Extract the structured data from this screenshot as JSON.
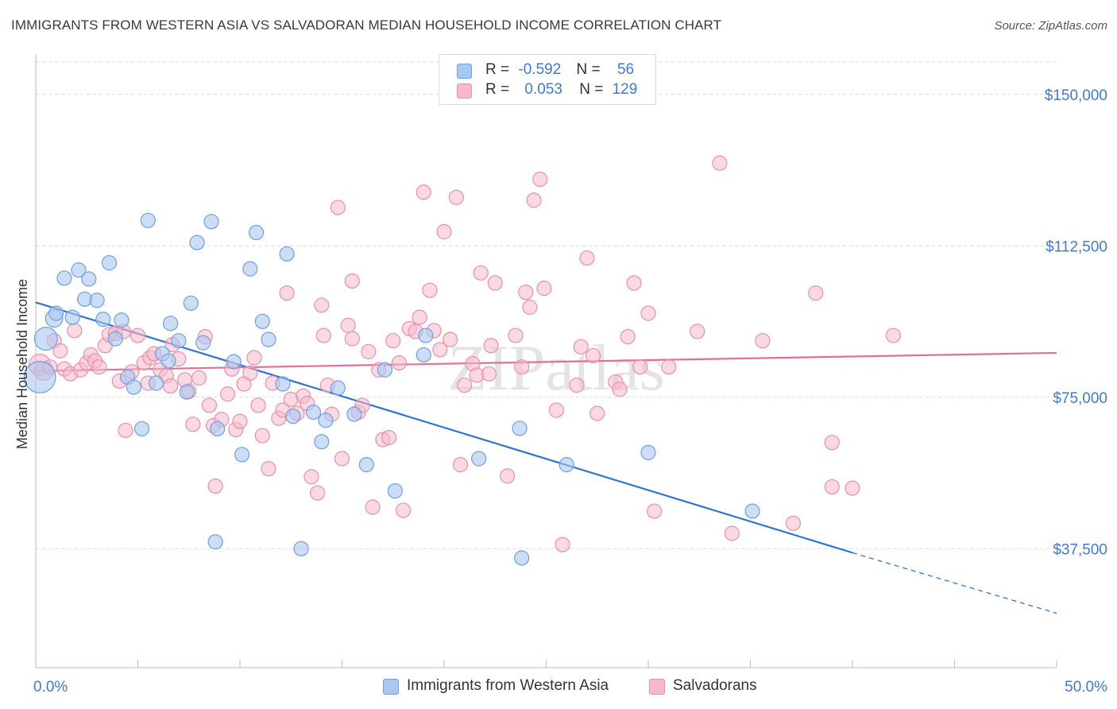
{
  "title": "IMMIGRANTS FROM WESTERN ASIA VS SALVADORAN MEDIAN HOUSEHOLD INCOME CORRELATION CHART",
  "source": "Source: ZipAtlas.com",
  "watermark": "ZIPatlas",
  "colors": {
    "blue_fill": "#a9c8f0",
    "blue_stroke": "#6f9fe0",
    "blue_line": "#2f74d0",
    "pink_fill": "#f6b9cb",
    "pink_stroke": "#ea8fab",
    "pink_line": "#e0709a",
    "axis_text": "#3f7ad0",
    "grid": "#d9d9d9"
  },
  "legend": {
    "rows": [
      {
        "r_label": "R =",
        "r_value": "-0.592",
        "n_label": "N =",
        "n_value": "56"
      },
      {
        "r_label": "R =",
        "r_value": "0.053",
        "n_label": "N =",
        "n_value": "129"
      }
    ]
  },
  "bottom_legend": [
    "Immigrants from Western Asia",
    "Salvadorans"
  ],
  "chart_data": {
    "type": "scatter",
    "title": "IMMIGRANTS FROM WESTERN ASIA VS SALVADORAN MEDIAN HOUSEHOLD INCOME CORRELATION CHART",
    "xlabel": "",
    "ylabel": "Median Household Income",
    "xlim": [
      0,
      50
    ],
    "ylim": [
      10000,
      160000
    ],
    "x_tick_labels": [
      "0.0%",
      "50.0%"
    ],
    "y_ticks": [
      37500,
      75000,
      112500,
      150000
    ],
    "y_tick_labels": [
      "$37,500",
      "$75,000",
      "$112,500",
      "$150,000"
    ],
    "grid": true,
    "legend_position": "top-center",
    "series": [
      {
        "name": "Immigrants from Western Asia",
        "r": -0.592,
        "n": 56,
        "trend": {
          "x0": 0,
          "y0": 98500,
          "x1": 40,
          "y1": 36500,
          "dashed_to_x": 50,
          "dashed_to_y": 21500
        },
        "points": [
          [
            0.2,
            80000,
            2.2
          ],
          [
            0.5,
            89500,
            1.6
          ],
          [
            0.9,
            94500,
            1.2
          ],
          [
            1.0,
            95800,
            1.0
          ],
          [
            1.4,
            104500,
            1.0
          ],
          [
            1.8,
            94800,
            1.0
          ],
          [
            2.1,
            106500,
            1.0
          ],
          [
            2.4,
            99300,
            1.0
          ],
          [
            2.6,
            104300,
            1.0
          ],
          [
            3.0,
            99000,
            1.0
          ],
          [
            3.3,
            94300,
            1.0
          ],
          [
            3.6,
            108300,
            1.0
          ],
          [
            3.9,
            89500,
            1.0
          ],
          [
            4.2,
            94100,
            1.0
          ],
          [
            4.5,
            80000,
            1.0
          ],
          [
            4.8,
            77500,
            1.0
          ],
          [
            5.2,
            67200,
            1.0
          ],
          [
            5.5,
            118800,
            1.0
          ],
          [
            5.9,
            78500,
            1.0
          ],
          [
            6.2,
            85800,
            1.0
          ],
          [
            6.5,
            84000,
            1.0
          ],
          [
            6.6,
            93300,
            1.0
          ],
          [
            7.0,
            89000,
            1.0
          ],
          [
            7.4,
            76300,
            1.0
          ],
          [
            7.6,
            98300,
            1.0
          ],
          [
            7.9,
            113300,
            1.0
          ],
          [
            8.2,
            88500,
            1.0
          ],
          [
            8.6,
            118500,
            1.0
          ],
          [
            8.9,
            67200,
            1.0
          ],
          [
            8.8,
            39200,
            1.0
          ],
          [
            9.7,
            83800,
            1.0
          ],
          [
            10.1,
            60800,
            1.0
          ],
          [
            10.5,
            106800,
            1.0
          ],
          [
            10.8,
            115800,
            1.0
          ],
          [
            11.1,
            93800,
            1.0
          ],
          [
            11.4,
            89300,
            1.0
          ],
          [
            12.1,
            78300,
            1.0
          ],
          [
            12.3,
            110500,
            1.0
          ],
          [
            12.6,
            70300,
            1.0
          ],
          [
            13.0,
            37500,
            1.0
          ],
          [
            13.6,
            71300,
            1.0
          ],
          [
            14.0,
            64000,
            1.0
          ],
          [
            14.2,
            69300,
            1.0
          ],
          [
            14.8,
            77300,
            1.0
          ],
          [
            15.6,
            70800,
            1.0
          ],
          [
            16.2,
            58300,
            1.0
          ],
          [
            17.1,
            81800,
            1.0
          ],
          [
            17.6,
            51800,
            1.0
          ],
          [
            19.1,
            90300,
            1.0
          ],
          [
            19.0,
            85500,
            1.0
          ],
          [
            21.7,
            59800,
            1.0
          ],
          [
            23.7,
            67300,
            1.0
          ],
          [
            23.8,
            35200,
            1.0
          ],
          [
            26.0,
            58300,
            1.0
          ],
          [
            30.0,
            61300,
            1.0
          ],
          [
            35.1,
            46800,
            1.0
          ]
        ]
      },
      {
        "name": "Salvadorans",
        "r": 0.053,
        "n": 129,
        "trend": {
          "x0": 0,
          "y0": 81500,
          "x1": 50,
          "y1": 86000
        },
        "points": [
          [
            0.2,
            83000,
            1.5
          ],
          [
            0.4,
            81500,
            1.3
          ],
          [
            0.7,
            82500,
            1.0
          ],
          [
            0.9,
            89000,
            1.0
          ],
          [
            1.2,
            86500,
            1.0
          ],
          [
            1.4,
            82000,
            1.0
          ],
          [
            1.7,
            80800,
            1.0
          ],
          [
            1.9,
            91500,
            1.0
          ],
          [
            2.2,
            81800,
            1.0
          ],
          [
            2.5,
            83500,
            1.0
          ],
          [
            2.7,
            85500,
            1.0
          ],
          [
            2.9,
            84000,
            1.0
          ],
          [
            3.1,
            82500,
            1.0
          ],
          [
            3.4,
            87800,
            1.0
          ],
          [
            3.6,
            90500,
            1.0
          ],
          [
            3.9,
            90800,
            1.0
          ],
          [
            4.1,
            79000,
            1.0
          ],
          [
            4.3,
            91300,
            1.0
          ],
          [
            4.4,
            66800,
            1.0
          ],
          [
            4.7,
            81300,
            1.0
          ],
          [
            5.0,
            90300,
            1.0
          ],
          [
            5.3,
            83500,
            1.0
          ],
          [
            5.5,
            78500,
            1.0
          ],
          [
            5.6,
            84800,
            1.0
          ],
          [
            5.8,
            85800,
            1.0
          ],
          [
            6.1,
            81800,
            1.0
          ],
          [
            6.4,
            80300,
            1.0
          ],
          [
            6.6,
            77800,
            1.0
          ],
          [
            6.7,
            88000,
            1.0
          ],
          [
            7.0,
            84500,
            1.0
          ],
          [
            7.3,
            79300,
            1.0
          ],
          [
            7.5,
            76500,
            1.0
          ],
          [
            7.7,
            68300,
            1.0
          ],
          [
            8.0,
            79800,
            1.0
          ],
          [
            8.3,
            90000,
            1.0
          ],
          [
            8.5,
            73000,
            1.0
          ],
          [
            8.8,
            53000,
            1.0
          ],
          [
            8.7,
            68000,
            1.0
          ],
          [
            9.1,
            69500,
            1.0
          ],
          [
            9.4,
            75800,
            1.0
          ],
          [
            9.6,
            82000,
            1.0
          ],
          [
            9.8,
            67000,
            1.0
          ],
          [
            10.0,
            69000,
            1.0
          ],
          [
            10.2,
            78300,
            1.0
          ],
          [
            10.5,
            81000,
            1.0
          ],
          [
            10.7,
            84800,
            1.0
          ],
          [
            10.9,
            73000,
            1.0
          ],
          [
            11.1,
            65500,
            1.0
          ],
          [
            11.4,
            57300,
            1.0
          ],
          [
            11.6,
            78500,
            1.0
          ],
          [
            11.9,
            69800,
            1.0
          ],
          [
            12.1,
            71800,
            1.0
          ],
          [
            12.3,
            100800,
            1.0
          ],
          [
            12.5,
            74500,
            1.0
          ],
          [
            12.8,
            71000,
            1.0
          ],
          [
            13.1,
            75300,
            1.0
          ],
          [
            13.3,
            73500,
            1.0
          ],
          [
            13.5,
            55300,
            1.0
          ],
          [
            13.8,
            51300,
            1.0
          ],
          [
            14.0,
            97800,
            1.0
          ],
          [
            14.3,
            78000,
            1.0
          ],
          [
            14.5,
            70800,
            1.0
          ],
          [
            14.1,
            90300,
            1.0
          ],
          [
            14.8,
            122000,
            1.0
          ],
          [
            15.0,
            59800,
            1.0
          ],
          [
            15.3,
            92800,
            1.0
          ],
          [
            15.5,
            89500,
            1.0
          ],
          [
            15.8,
            71300,
            1.0
          ],
          [
            16.0,
            73000,
            1.0
          ],
          [
            15.5,
            103800,
            1.0
          ],
          [
            16.3,
            86300,
            1.0
          ],
          [
            16.5,
            47800,
            1.0
          ],
          [
            16.8,
            81800,
            1.0
          ],
          [
            17.0,
            64500,
            1.0
          ],
          [
            17.3,
            65000,
            1.0
          ],
          [
            17.5,
            89000,
            1.0
          ],
          [
            17.8,
            83500,
            1.0
          ],
          [
            18.0,
            47000,
            1.0
          ],
          [
            18.3,
            92000,
            1.0
          ],
          [
            18.6,
            91300,
            1.0
          ],
          [
            18.8,
            94800,
            1.0
          ],
          [
            19.0,
            125800,
            1.0
          ],
          [
            19.3,
            101500,
            1.0
          ],
          [
            19.5,
            91500,
            1.0
          ],
          [
            19.8,
            86800,
            1.0
          ],
          [
            20.0,
            116000,
            1.0
          ],
          [
            20.3,
            89300,
            1.0
          ],
          [
            20.6,
            124500,
            1.0
          ],
          [
            20.8,
            58300,
            1.0
          ],
          [
            21.0,
            78000,
            1.0
          ],
          [
            21.4,
            83300,
            1.0
          ],
          [
            21.6,
            80500,
            1.0
          ],
          [
            21.8,
            105800,
            1.0
          ],
          [
            22.2,
            80800,
            1.0
          ],
          [
            22.3,
            87800,
            1.0
          ],
          [
            22.5,
            103300,
            1.0
          ],
          [
            23.1,
            55500,
            1.0
          ],
          [
            23.5,
            90300,
            1.0
          ],
          [
            23.8,
            82500,
            1.0
          ],
          [
            24.0,
            101000,
            1.0
          ],
          [
            24.2,
            97300,
            1.0
          ],
          [
            24.4,
            123800,
            1.0
          ],
          [
            24.7,
            129000,
            1.0
          ],
          [
            24.9,
            102000,
            1.0
          ],
          [
            25.5,
            71800,
            1.0
          ],
          [
            25.8,
            38500,
            1.0
          ],
          [
            26.5,
            78000,
            1.0
          ],
          [
            26.7,
            87500,
            1.0
          ],
          [
            27.0,
            109500,
            1.0
          ],
          [
            27.3,
            85300,
            1.0
          ],
          [
            27.5,
            71000,
            1.0
          ],
          [
            28.4,
            78800,
            1.0
          ],
          [
            28.6,
            77000,
            1.0
          ],
          [
            29.0,
            90000,
            1.0
          ],
          [
            29.3,
            103300,
            1.0
          ],
          [
            29.6,
            82500,
            1.0
          ],
          [
            30.3,
            46800,
            1.0
          ],
          [
            30.0,
            95800,
            1.0
          ],
          [
            31.0,
            82500,
            1.0
          ],
          [
            32.4,
            91300,
            1.0
          ],
          [
            33.5,
            133000,
            1.0
          ],
          [
            34.1,
            41300,
            1.0
          ],
          [
            35.6,
            89000,
            1.0
          ],
          [
            37.1,
            43800,
            1.0
          ],
          [
            38.2,
            100800,
            1.0
          ],
          [
            39.0,
            63800,
            1.0
          ],
          [
            39.0,
            52800,
            1.0
          ],
          [
            40.0,
            52500,
            1.0
          ],
          [
            42.0,
            90300,
            1.0
          ]
        ]
      }
    ]
  }
}
